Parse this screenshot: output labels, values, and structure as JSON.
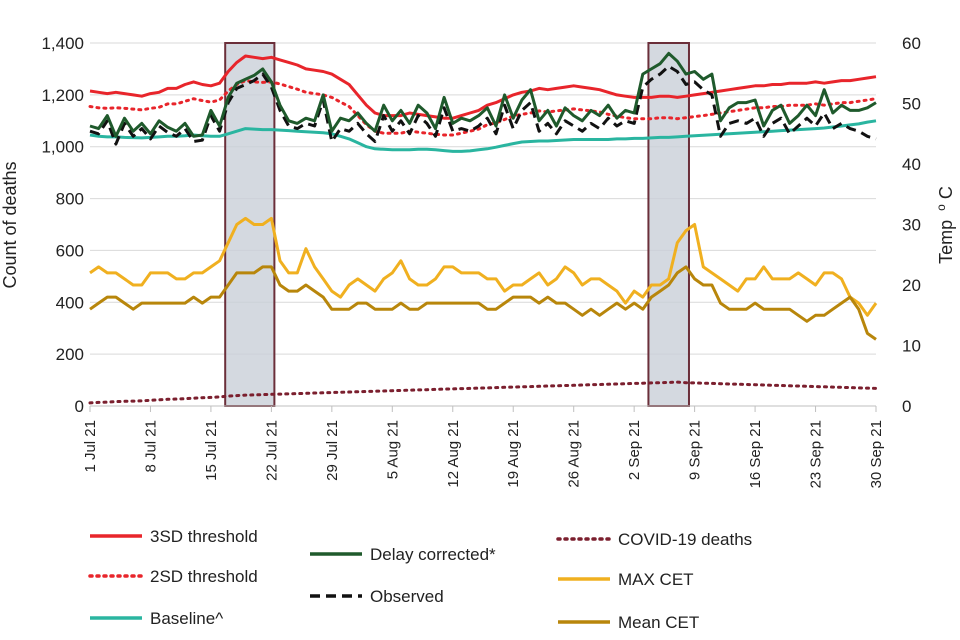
{
  "chart_data": {
    "type": "line",
    "y_left": {
      "label": "Count of deaths",
      "ticks": [
        "0",
        "200",
        "400",
        "600",
        "800",
        "1,000",
        "1,200",
        "1,400"
      ],
      "range": [
        0,
        1400
      ]
    },
    "y_right": {
      "label": "Temp",
      "label_sup": "o",
      "label_suffix": "C",
      "ticks": [
        "0",
        "10",
        "20",
        "30",
        "40",
        "50",
        "60"
      ],
      "range": [
        0,
        60
      ]
    },
    "x_ticks": [
      {
        "label": "1 Jul 21",
        "day": 0
      },
      {
        "label": "8 Jul 21",
        "day": 7
      },
      {
        "label": "15 Jul 21",
        "day": 14
      },
      {
        "label": "22 Jul 21",
        "day": 21
      },
      {
        "label": "29 Jul 21",
        "day": 28
      },
      {
        "label": "5 Aug 21",
        "day": 35
      },
      {
        "label": "12 Aug 21",
        "day": 42
      },
      {
        "label": "19 Aug 21",
        "day": 49
      },
      {
        "label": "26 Aug 21",
        "day": 56
      },
      {
        "label": "2 Sep 21",
        "day": 63
      },
      {
        "label": "9 Sep 21",
        "day": 70
      },
      {
        "label": "16 Sep 21",
        "day": 77
      },
      {
        "label": "23 Sep 21",
        "day": 84
      },
      {
        "label": "30 Sep 21",
        "day": 91
      }
    ],
    "x_range": [
      0,
      91
    ],
    "highlight_periods": [
      {
        "start_day": 16,
        "end_day": 21,
        "label": "heat-period-july"
      },
      {
        "start_day": 65,
        "end_day": 69,
        "label": "heat-period-september"
      }
    ],
    "series": [
      {
        "name": "3SD threshold",
        "axis": "left",
        "style": "solid",
        "color": "#e8252b",
        "values": [
          1215,
          1210,
          1205,
          1210,
          1205,
          1200,
          1195,
          1205,
          1210,
          1225,
          1225,
          1240,
          1250,
          1240,
          1235,
          1245,
          1290,
          1325,
          1350,
          1345,
          1340,
          1345,
          1335,
          1325,
          1315,
          1300,
          1295,
          1290,
          1280,
          1260,
          1240,
          1200,
          1160,
          1130,
          1120,
          1120,
          1120,
          1130,
          1125,
          1120,
          1115,
          1110,
          1110,
          1120,
          1130,
          1140,
          1160,
          1170,
          1185,
          1200,
          1210,
          1215,
          1225,
          1220,
          1225,
          1230,
          1235,
          1230,
          1225,
          1220,
          1210,
          1200,
          1195,
          1190,
          1190,
          1190,
          1195,
          1195,
          1190,
          1195,
          1200,
          1205,
          1210,
          1215,
          1220,
          1225,
          1230,
          1235,
          1235,
          1240,
          1240,
          1245,
          1245,
          1245,
          1250,
          1245,
          1250,
          1255,
          1255,
          1260,
          1265,
          1270
        ]
      },
      {
        "name": "2SD threshold",
        "axis": "left",
        "style": "dotted",
        "color": "#e8252b",
        "values": [
          1155,
          1150,
          1148,
          1150,
          1148,
          1145,
          1142,
          1148,
          1152,
          1165,
          1165,
          1175,
          1185,
          1178,
          1172,
          1180,
          1215,
          1240,
          1255,
          1250,
          1248,
          1250,
          1242,
          1232,
          1222,
          1210,
          1205,
          1200,
          1190,
          1172,
          1155,
          1120,
          1085,
          1060,
          1052,
          1052,
          1052,
          1060,
          1056,
          1052,
          1048,
          1045,
          1045,
          1052,
          1060,
          1068,
          1085,
          1092,
          1105,
          1118,
          1125,
          1130,
          1138,
          1134,
          1138,
          1142,
          1146,
          1142,
          1138,
          1134,
          1125,
          1118,
          1112,
          1108,
          1108,
          1108,
          1112,
          1112,
          1108,
          1112,
          1116,
          1120,
          1125,
          1130,
          1135,
          1140,
          1145,
          1150,
          1150,
          1155,
          1155,
          1160,
          1160,
          1160,
          1165,
          1160,
          1165,
          1170,
          1170,
          1175,
          1180,
          1185
        ]
      },
      {
        "name": "Baseline^",
        "axis": "left",
        "style": "solid",
        "color": "#2ab5a0",
        "values": [
          1045,
          1040,
          1038,
          1038,
          1036,
          1035,
          1034,
          1036,
          1038,
          1040,
          1040,
          1042,
          1045,
          1042,
          1040,
          1040,
          1050,
          1060,
          1070,
          1068,
          1066,
          1066,
          1064,
          1062,
          1060,
          1058,
          1056,
          1054,
          1050,
          1040,
          1030,
          1015,
          1000,
          992,
          990,
          988,
          988,
          988,
          990,
          990,
          988,
          985,
          982,
          982,
          984,
          988,
          992,
          998,
          1005,
          1012,
          1018,
          1020,
          1022,
          1022,
          1024,
          1026,
          1028,
          1028,
          1028,
          1028,
          1028,
          1030,
          1030,
          1032,
          1032,
          1034,
          1036,
          1036,
          1038,
          1040,
          1042,
          1044,
          1046,
          1048,
          1050,
          1052,
          1054,
          1056,
          1058,
          1060,
          1062,
          1064,
          1066,
          1068,
          1070,
          1072,
          1076,
          1080,
          1084,
          1088,
          1095,
          1100
        ]
      },
      {
        "name": "Delay corrected*",
        "axis": "left",
        "style": "solid",
        "color": "#1f5a2c",
        "values": [
          1080,
          1070,
          1120,
          1040,
          1110,
          1060,
          1090,
          1050,
          1100,
          1075,
          1060,
          1090,
          1040,
          1045,
          1140,
          1080,
          1190,
          1245,
          1260,
          1275,
          1300,
          1250,
          1160,
          1100,
          1090,
          1110,
          1100,
          1200,
          1060,
          1110,
          1100,
          1130,
          1090,
          1060,
          1160,
          1100,
          1140,
          1090,
          1160,
          1130,
          1070,
          1190,
          1090,
          1110,
          1100,
          1120,
          1150,
          1080,
          1200,
          1110,
          1180,
          1220,
          1100,
          1140,
          1080,
          1150,
          1120,
          1100,
          1140,
          1120,
          1160,
          1110,
          1140,
          1130,
          1280,
          1300,
          1320,
          1360,
          1330,
          1280,
          1290,
          1260,
          1280,
          1100,
          1150,
          1170,
          1170,
          1180,
          1080,
          1140,
          1160,
          1090,
          1120,
          1160,
          1120,
          1220,
          1130,
          1160,
          1140,
          1140,
          1150,
          1170
        ]
      },
      {
        "name": "Observed",
        "axis": "left",
        "style": "dashed",
        "color": "#111111",
        "values": [
          1060,
          1050,
          1100,
          1010,
          1090,
          1040,
          1070,
          1030,
          1080,
          1055,
          1040,
          1070,
          1020,
          1025,
          1120,
          1060,
          1170,
          1225,
          1240,
          1255,
          1280,
          1230,
          1140,
          1080,
          1070,
          1090,
          1080,
          1180,
          1020,
          1070,
          1060,
          1090,
          1050,
          1020,
          1120,
          1060,
          1100,
          1050,
          1120,
          1090,
          1040,
          1150,
          1060,
          1070,
          1060,
          1080,
          1110,
          1050,
          1160,
          1070,
          1140,
          1170,
          1060,
          1090,
          1050,
          1100,
          1080,
          1060,
          1090,
          1070,
          1110,
          1080,
          1100,
          1090,
          1230,
          1260,
          1280,
          1310,
          1290,
          1240,
          1250,
          1220,
          1200,
          1040,
          1090,
          1100,
          1090,
          1110,
          1040,
          1090,
          1110,
          1050,
          1080,
          1110,
          1080,
          1130,
          1070,
          1090,
          1070,
          1060,
          1040,
          1030
        ]
      },
      {
        "name": "COVID-19 deaths",
        "axis": "left",
        "style": "dotted",
        "color": "#7b1f2e",
        "values": [
          12,
          14,
          15,
          17,
          18,
          19,
          20,
          22,
          24,
          26,
          27,
          28,
          30,
          32,
          33,
          35,
          38,
          40,
          42,
          43,
          44,
          45,
          46,
          47,
          48,
          49,
          50,
          51,
          52,
          53,
          54,
          55,
          56,
          57,
          58,
          59,
          60,
          61,
          62,
          63,
          64,
          65,
          66,
          67,
          68,
          69,
          70,
          71,
          72,
          73,
          74,
          75,
          76,
          77,
          78,
          79,
          80,
          81,
          82,
          83,
          84,
          85,
          86,
          87,
          88,
          89,
          90,
          91,
          92,
          90,
          89,
          88,
          87,
          86,
          85,
          84,
          83,
          82,
          81,
          80,
          79,
          78,
          77,
          76,
          75,
          74,
          73,
          72,
          71,
          70,
          69,
          68
        ]
      },
      {
        "name": "MAX CET",
        "axis": "right",
        "style": "solid",
        "color": "#f0b020",
        "values": [
          22,
          23,
          22,
          22,
          21,
          20,
          20,
          22,
          22,
          22,
          21,
          21,
          22,
          22,
          23,
          24,
          27,
          30,
          31,
          30,
          30,
          31,
          24,
          22,
          22,
          26,
          23,
          21,
          19,
          18,
          20,
          21,
          20,
          19,
          21,
          22,
          24,
          21,
          20,
          20,
          21,
          23,
          23,
          22,
          22,
          22,
          21,
          21,
          19,
          20,
          20,
          21,
          22,
          20,
          21,
          23,
          22,
          20,
          21,
          21,
          20,
          19,
          17,
          19,
          18,
          20,
          20,
          21,
          27,
          29,
          30,
          23,
          22,
          21,
          20,
          19,
          21,
          21,
          23,
          21,
          21,
          21,
          22,
          21,
          20,
          22,
          22,
          21,
          18,
          17,
          15,
          17
        ]
      },
      {
        "name": "Mean CET",
        "axis": "right",
        "style": "solid",
        "color": "#b8860b",
        "values": [
          16,
          17,
          18,
          18,
          17,
          16,
          17,
          17,
          17,
          17,
          17,
          17,
          18,
          17,
          18,
          18,
          20,
          22,
          22,
          22,
          23,
          23,
          20,
          19,
          19,
          20,
          19,
          18,
          16,
          16,
          16,
          17,
          17,
          16,
          16,
          16,
          17,
          16,
          16,
          17,
          17,
          17,
          17,
          17,
          17,
          17,
          16,
          16,
          17,
          18,
          18,
          18,
          17,
          18,
          17,
          17,
          16,
          15,
          16,
          15,
          16,
          17,
          16,
          17,
          16,
          18,
          19,
          20,
          22,
          23,
          21,
          20,
          20,
          17,
          16,
          16,
          16,
          17,
          16,
          16,
          16,
          16,
          15,
          14,
          15,
          15,
          16,
          17,
          18,
          16,
          12,
          11
        ]
      }
    ],
    "legend": [
      {
        "name": "3SD threshold",
        "style": "solid",
        "color": "#e8252b"
      },
      {
        "name": "Delay corrected*",
        "style": "solid",
        "color": "#1f5a2c"
      },
      {
        "name": "COVID-19 deaths",
        "style": "dotted",
        "color": "#7b1f2e"
      },
      {
        "name": "2SD threshold",
        "style": "dotted",
        "color": "#e8252b"
      },
      {
        "name": "MAX CET",
        "style": "solid",
        "color": "#f0b020"
      },
      {
        "name": "Baseline^",
        "style": "solid",
        "color": "#2ab5a0"
      },
      {
        "name": "Observed",
        "style": "dashed",
        "color": "#111111"
      },
      {
        "name": "Mean CET",
        "style": "solid",
        "color": "#b8860b"
      }
    ]
  }
}
